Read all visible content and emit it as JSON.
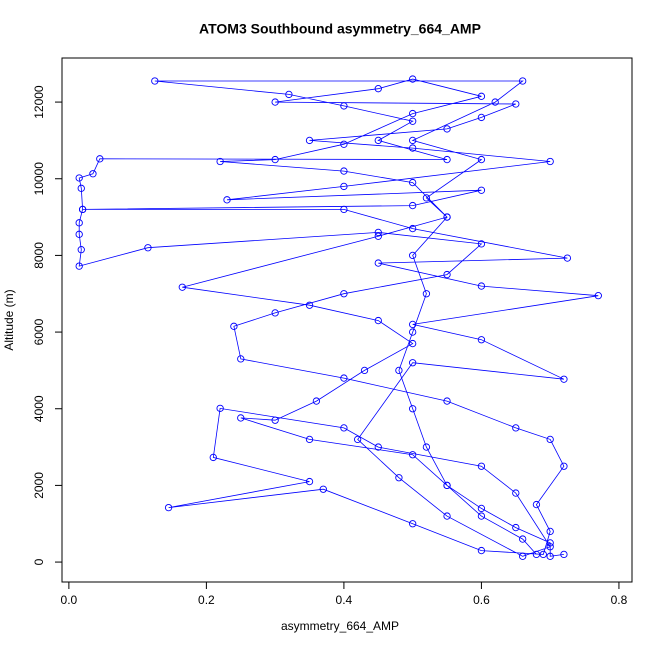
{
  "chart_data": {
    "type": "line",
    "title": "ATOM3 Southbound asymmetry_664_AMP",
    "x_label": "asymmetry_664_AMP",
    "y_label": "Altitude (m)",
    "color": "#0000ff",
    "markers": "open-circle",
    "x": [
      0.68,
      0.66,
      0.6,
      0.55,
      0.52,
      0.5,
      0.48,
      0.5,
      0.52,
      0.5,
      0.55,
      0.52,
      0.6,
      0.5,
      0.62,
      0.66,
      0.125,
      0.32,
      0.4,
      0.5,
      0.45,
      0.55,
      0.045,
      0.035,
      0.015,
      0.018,
      0.02,
      0.015,
      0.015,
      0.018,
      0.015,
      0.115,
      0.45,
      0.6,
      0.55,
      0.4,
      0.3,
      0.24,
      0.25,
      0.4,
      0.55,
      0.65,
      0.7,
      0.72,
      0.68,
      0.7,
      0.69,
      0.6,
      0.5,
      0.37,
      0.145,
      0.35,
      0.21,
      0.22,
      0.4,
      0.45,
      0.6,
      0.65,
      0.7,
      0.66,
      0.55,
      0.48,
      0.42,
      0.5,
      0.72,
      0.6,
      0.5,
      0.77,
      0.6,
      0.45,
      0.725,
      0.5,
      0.4,
      0.02,
      0.5,
      0.6,
      0.23,
      0.4,
      0.7,
      0.5,
      0.35,
      0.55,
      0.6,
      0.65,
      0.3,
      0.45,
      0.5,
      0.6,
      0.5,
      0.4,
      0.3,
      0.22,
      0.4,
      0.5,
      0.55,
      0.45,
      0.165,
      0.35,
      0.45,
      0.5,
      0.43,
      0.36,
      0.3,
      0.25,
      0.35,
      0.5,
      0.55,
      0.6,
      0.65,
      0.7,
      0.7,
      0.72
    ],
    "values": [
      200,
      600,
      1200,
      2000,
      3000,
      4000,
      5000,
      6000,
      7000,
      8000,
      9000,
      9500,
      10500,
      11000,
      12000,
      12550,
      12550,
      12200,
      11900,
      11500,
      11000,
      10500,
      10520,
      10130,
      10020,
      9750,
      9200,
      8850,
      8550,
      8150,
      7720,
      8200,
      8600,
      8300,
      7500,
      7000,
      6500,
      6150,
      5300,
      4800,
      4200,
      3500,
      3200,
      2500,
      1500,
      800,
      200,
      300,
      1000,
      1900,
      1420,
      2100,
      2730,
      4010,
      3500,
      3000,
      2500,
      1800,
      400,
      150,
      1200,
      2200,
      3200,
      5200,
      4770,
      5800,
      6200,
      6950,
      7200,
      7800,
      7930,
      8700,
      9200,
      9200,
      9300,
      9700,
      9450,
      9800,
      10450,
      10800,
      11000,
      11300,
      11600,
      11950,
      12000,
      12350,
      12600,
      12150,
      11700,
      10900,
      10500,
      10450,
      10200,
      9900,
      9000,
      8500,
      7170,
      6700,
      6300,
      5700,
      5000,
      4200,
      3700,
      3760,
      3200,
      2800,
      2000,
      1400,
      900,
      500,
      150,
      200
    ],
    "xlim": [
      -0.01,
      0.819
    ],
    "ylim": [
      -520,
      13150
    ],
    "xticks": [
      {
        "value": 0,
        "label": "0.0"
      },
      0.2,
      0.4,
      0.6,
      0.8
    ],
    "yticks": [
      0,
      2000,
      4000,
      6000,
      8000,
      10000,
      12000
    ]
  }
}
